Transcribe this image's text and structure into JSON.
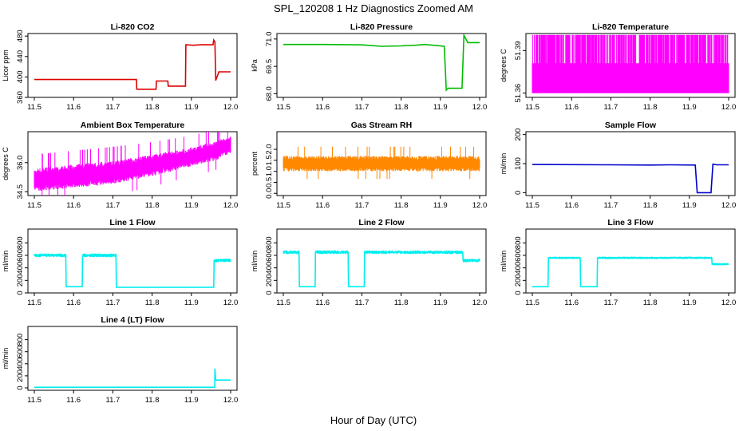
{
  "figure": {
    "title": "SPL_120208  1 Hz Diagnostics Zoomed AM",
    "xlabel": "Hour of Day (UTC)"
  },
  "chart_data": [
    {
      "type": "line",
      "title": "Li-820 CO2",
      "ylabel": "Licor ppm",
      "color": "#dd0000",
      "xlim": [
        11.5,
        12.0
      ],
      "ylim": [
        360,
        485
      ],
      "xticks": [
        "11.5",
        "11.6",
        "11.7",
        "11.8",
        "11.9",
        "12.0"
      ],
      "yticks": [
        360,
        400,
        440,
        480
      ],
      "x": [
        11.5,
        11.76,
        11.761,
        11.81,
        11.811,
        11.84,
        11.841,
        11.885,
        11.886,
        11.905,
        11.925,
        11.955,
        11.957,
        11.96,
        11.962,
        11.97,
        12.0
      ],
      "y": [
        395,
        395,
        376,
        376,
        392,
        392,
        382,
        382,
        463,
        462,
        463,
        463,
        472,
        468,
        393,
        410,
        410
      ]
    },
    {
      "type": "line",
      "title": "Li-820 Pressure",
      "ylabel": "kPa",
      "color": "#00bb00",
      "xlim": [
        11.5,
        12.0
      ],
      "ylim": [
        67.8,
        71.3
      ],
      "xticks": [
        "11.5",
        "11.6",
        "11.7",
        "11.8",
        "11.9",
        "12.0"
      ],
      "yticks": [
        "68.0",
        "69.5",
        "71.0"
      ],
      "x": [
        11.5,
        11.6,
        11.7,
        11.75,
        11.8,
        11.84,
        11.86,
        11.91,
        11.915,
        11.92,
        11.955,
        11.96,
        11.97,
        12.0
      ],
      "y": [
        70.7,
        70.7,
        70.68,
        70.6,
        70.62,
        70.66,
        70.7,
        70.6,
        68.2,
        68.3,
        68.3,
        71.2,
        70.8,
        70.8
      ]
    },
    {
      "type": "area",
      "title": "Li-820 Temperature",
      "ylabel": "degrees C",
      "color": "#ff00ff",
      "xlim": [
        11.5,
        12.0
      ],
      "ylim": [
        51.357,
        51.402
      ],
      "xticks": [
        "11.5",
        "11.6",
        "11.7",
        "11.8",
        "11.9",
        "12.0"
      ],
      "yticks": [
        "51.36",
        "51.39"
      ],
      "x": [
        11.5,
        12.0
      ],
      "y_low": [
        51.36,
        51.36
      ],
      "y_high": [
        51.401,
        51.401
      ],
      "y_typical_band": [
        51.36,
        51.381
      ]
    },
    {
      "type": "area",
      "title": "Ambient Box Temperature",
      "ylabel": "degrees C",
      "color": "#ff00ff",
      "xlim": [
        11.5,
        12.0
      ],
      "ylim": [
        34.3,
        37.6
      ],
      "xticks": [
        "11.5",
        "11.6",
        "11.7",
        "11.8",
        "11.9",
        "12.0"
      ],
      "yticks": [
        "34.5",
        "36.0"
      ],
      "x": [
        11.5,
        11.6,
        11.7,
        11.8,
        11.9,
        11.96,
        12.0
      ],
      "y_low": [
        34.5,
        34.7,
        34.9,
        35.3,
        35.8,
        36.1,
        36.5
      ],
      "y_high": [
        35.7,
        35.9,
        36.1,
        36.4,
        36.8,
        37.1,
        37.4
      ]
    },
    {
      "type": "area",
      "title": "Gas Stream RH",
      "ylabel": "percent",
      "color": "#ff8800",
      "xlim": [
        11.5,
        12.0
      ],
      "ylim": [
        -0.1,
        2.8
      ],
      "xticks": [
        "11.5",
        "11.6",
        "11.7",
        "11.8",
        "11.9",
        "12.0"
      ],
      "yticks": [
        "0.0",
        "0.5",
        "1.0",
        "1.5",
        "2.0"
      ],
      "x": [
        11.5,
        12.0
      ],
      "y_low": [
        1.0,
        1.0
      ],
      "y_high": [
        1.7,
        1.7
      ]
    },
    {
      "type": "line",
      "title": "Sample Flow",
      "ylabel": "ml/min",
      "color": "#0000cc",
      "xlim": [
        11.5,
        12.0
      ],
      "ylim": [
        -10,
        210
      ],
      "xticks": [
        "11.5",
        "11.6",
        "11.7",
        "11.8",
        "11.9",
        "12.0"
      ],
      "yticks": [
        0,
        100,
        200
      ],
      "x": [
        11.5,
        11.7,
        11.8,
        11.85,
        11.915,
        11.92,
        11.955,
        11.96,
        11.97,
        12.0
      ],
      "y": [
        97,
        96,
        95,
        96,
        95,
        0,
        0,
        98,
        96,
        96
      ]
    },
    {
      "type": "line",
      "title": "Line 1 Flow",
      "ylabel": "ml/min",
      "color": "#00eeee",
      "xlim": [
        11.5,
        12.0
      ],
      "ylim": [
        0,
        1020
      ],
      "xticks": [
        "11.5",
        "11.6",
        "11.7",
        "11.8",
        "11.9",
        "12.0"
      ],
      "yticks": [
        0,
        200,
        400,
        600,
        800
      ],
      "x": [
        11.5,
        11.58,
        11.581,
        11.622,
        11.623,
        11.708,
        11.709,
        11.957,
        11.958,
        12.0
      ],
      "y": [
        600,
        600,
        100,
        100,
        600,
        600,
        90,
        90,
        520,
        520
      ],
      "band": 60
    },
    {
      "type": "line",
      "title": "Line 2 Flow",
      "ylabel": "ml/min",
      "color": "#00eeee",
      "xlim": [
        11.5,
        12.0
      ],
      "ylim": [
        0,
        1020
      ],
      "xticks": [
        "11.5",
        "11.6",
        "11.7",
        "11.8",
        "11.9",
        "12.0"
      ],
      "yticks": [
        0,
        200,
        400,
        600,
        800
      ],
      "x": [
        11.5,
        11.54,
        11.541,
        11.581,
        11.582,
        11.665,
        11.666,
        11.706,
        11.707,
        11.957,
        11.958,
        12.0
      ],
      "y": [
        650,
        650,
        100,
        100,
        650,
        650,
        100,
        100,
        650,
        650,
        520,
        520
      ],
      "band": 60
    },
    {
      "type": "line",
      "title": "Line 3 Flow",
      "ylabel": "ml/min",
      "color": "#00eeee",
      "xlim": [
        11.5,
        12.0
      ],
      "ylim": [
        0,
        1020
      ],
      "xticks": [
        "11.5",
        "11.6",
        "11.7",
        "11.8",
        "11.9",
        "12.0"
      ],
      "yticks": [
        0,
        200,
        400,
        600,
        800
      ],
      "x": [
        11.5,
        11.54,
        11.541,
        11.622,
        11.623,
        11.665,
        11.666,
        11.957,
        11.958,
        12.0
      ],
      "y": [
        100,
        100,
        560,
        560,
        100,
        100,
        560,
        560,
        460,
        460
      ],
      "band": 40
    },
    {
      "type": "line",
      "title": "Line 4 (LT) Flow",
      "ylabel": "ml/min",
      "color": "#00eeee",
      "xlim": [
        11.5,
        12.0
      ],
      "ylim": [
        -40,
        1020
      ],
      "xticks": [
        "11.5",
        "11.6",
        "11.7",
        "11.8",
        "11.9",
        "12.0"
      ],
      "yticks": [
        0,
        200,
        400,
        600,
        800
      ],
      "x": [
        11.5,
        11.9595,
        11.96,
        11.962,
        11.963,
        12.0
      ],
      "y": [
        10,
        10,
        320,
        130,
        130,
        130
      ],
      "band": 0
    }
  ]
}
